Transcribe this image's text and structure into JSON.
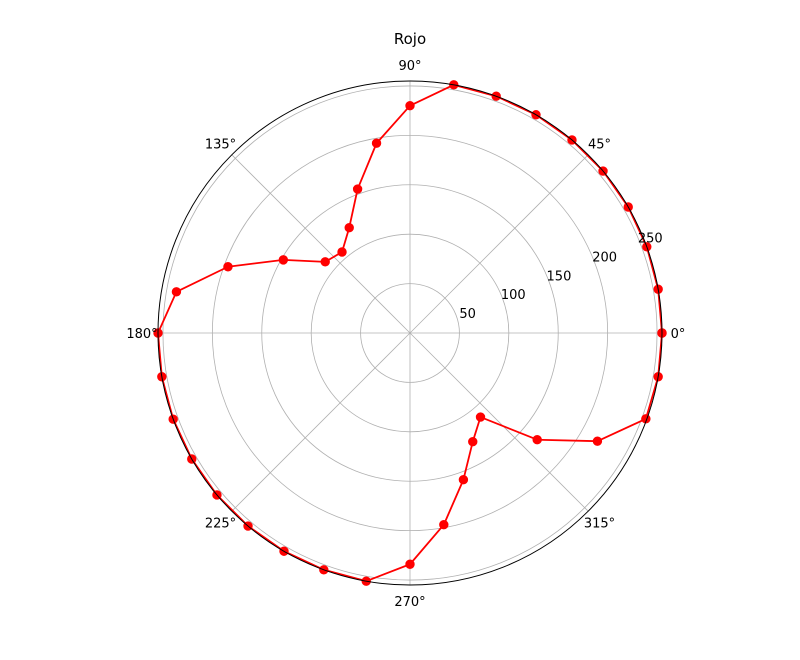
{
  "chart_data": {
    "type": "line",
    "projection": "polar",
    "title": "Rojo",
    "theta_unit": "degrees",
    "theta_tick_labels": [
      "0°",
      "45°",
      "90°",
      "135°",
      "180°",
      "225°",
      "270°",
      "315°"
    ],
    "r_tick_labels": [
      "50",
      "100",
      "150",
      "200",
      "250"
    ],
    "r_ticks": [
      50,
      100,
      150,
      200,
      250
    ],
    "rlim": [
      0,
      255
    ],
    "grid": true,
    "series": [
      {
        "color": "#ff0000",
        "marker": "circle",
        "points": [
          {
            "theta": 0,
            "r": 255
          },
          {
            "theta": 10,
            "r": 255
          },
          {
            "theta": 20,
            "r": 255
          },
          {
            "theta": 30,
            "r": 255
          },
          {
            "theta": 40,
            "r": 255
          },
          {
            "theta": 50,
            "r": 255
          },
          {
            "theta": 60,
            "r": 255
          },
          {
            "theta": 70,
            "r": 255
          },
          {
            "theta": 80,
            "r": 255
          },
          {
            "theta": 90,
            "r": 230
          },
          {
            "theta": 100,
            "r": 195
          },
          {
            "theta": 110,
            "r": 155
          },
          {
            "theta": 120,
            "r": 123
          },
          {
            "theta": 130,
            "r": 107
          },
          {
            "theta": 140,
            "r": 112
          },
          {
            "theta": 150,
            "r": 148
          },
          {
            "theta": 160,
            "r": 196
          },
          {
            "theta": 170,
            "r": 240
          },
          {
            "theta": 180,
            "r": 255
          },
          {
            "theta": 190,
            "r": 255
          },
          {
            "theta": 200,
            "r": 255
          },
          {
            "theta": 210,
            "r": 255
          },
          {
            "theta": 220,
            "r": 255
          },
          {
            "theta": 230,
            "r": 255
          },
          {
            "theta": 240,
            "r": 255
          },
          {
            "theta": 250,
            "r": 255
          },
          {
            "theta": 260,
            "r": 255
          },
          {
            "theta": 270,
            "r": 234
          },
          {
            "theta": 280,
            "r": 197
          },
          {
            "theta": 290,
            "r": 158
          },
          {
            "theta": 300,
            "r": 127
          },
          {
            "theta": 310,
            "r": 111
          },
          {
            "theta": 320,
            "r": 168
          },
          {
            "theta": 330,
            "r": 219
          },
          {
            "theta": 340,
            "r": 254
          },
          {
            "theta": 350,
            "r": 255
          },
          {
            "theta": 360,
            "r": 255
          }
        ]
      }
    ]
  }
}
